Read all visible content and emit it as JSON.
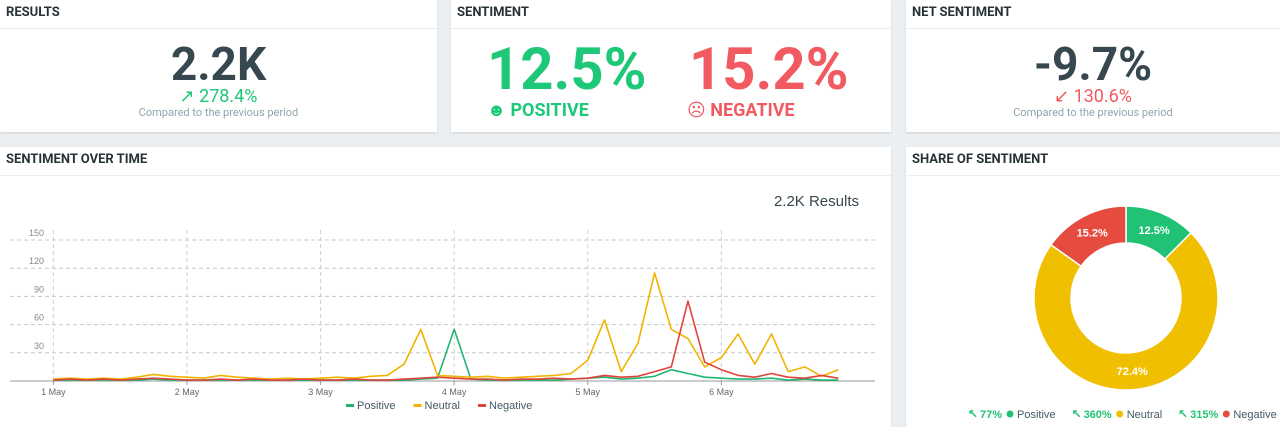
{
  "results": {
    "title": "RESULTS",
    "value": "2.2K",
    "change": "278.4%",
    "note": "Compared to the previous period"
  },
  "sentiment": {
    "title": "SENTIMENT",
    "positive": {
      "value": "12.5%",
      "label": "POSITIVE"
    },
    "negative": {
      "value": "15.2%",
      "label": "NEGATIVE"
    }
  },
  "net_sentiment": {
    "title": "NET SENTIMENT",
    "value": "-9.7%",
    "change": "130.6%",
    "note": "Compared to the previous period"
  },
  "chart_data": [
    {
      "type": "line",
      "title": "SENTIMENT OVER TIME",
      "subtitle": "2.2K Results",
      "x": [
        0,
        0.125,
        0.25,
        0.375,
        0.5,
        0.625,
        0.75,
        0.875,
        1,
        1.125,
        1.25,
        1.375,
        1.5,
        1.625,
        1.75,
        1.875,
        2,
        2.125,
        2.25,
        2.375,
        2.5,
        2.625,
        2.75,
        2.875,
        3,
        3.125,
        3.25,
        3.375,
        3.5,
        3.625,
        3.75,
        3.875,
        4,
        4.125,
        4.25,
        4.375,
        4.5,
        4.625,
        4.75,
        4.875,
        5,
        5.125,
        5.25,
        5.375,
        5.5,
        5.625,
        5.75,
        5.875
      ],
      "xlim": [
        -0.1,
        6.15
      ],
      "xticks": [
        {
          "value": 0,
          "label": "1 May"
        },
        {
          "value": 1,
          "label": "2 May"
        },
        {
          "value": 2,
          "label": "3 May"
        },
        {
          "value": 3,
          "label": "4 May"
        },
        {
          "value": 4,
          "label": "5 May"
        },
        {
          "value": 5,
          "label": "6 May"
        }
      ],
      "ylim": [
        0,
        150
      ],
      "yticks": [
        30,
        60,
        90,
        120,
        150
      ],
      "grid": true,
      "series": [
        {
          "name": "Positive",
          "color": "#21b573",
          "values": [
            1,
            1,
            1,
            1,
            1,
            1,
            2,
            1,
            1,
            1,
            1,
            1,
            1,
            1,
            1,
            1,
            1,
            1,
            1,
            1,
            1,
            1,
            2,
            3,
            55,
            2,
            1,
            1,
            1,
            1,
            1,
            2,
            3,
            4,
            2,
            3,
            5,
            12,
            8,
            4,
            3,
            2,
            2,
            3,
            1,
            2,
            1,
            1
          ]
        },
        {
          "name": "Neutral",
          "color": "#f0b400",
          "values": [
            2,
            3,
            2,
            3,
            2,
            4,
            7,
            5,
            4,
            3,
            6,
            4,
            3,
            2,
            3,
            2,
            3,
            4,
            3,
            5,
            6,
            18,
            55,
            6,
            5,
            4,
            5,
            3,
            4,
            5,
            6,
            8,
            22,
            65,
            10,
            40,
            115,
            55,
            45,
            15,
            25,
            50,
            18,
            50,
            10,
            15,
            5,
            12
          ]
        },
        {
          "name": "Negative",
          "color": "#e0433a",
          "values": [
            1,
            2,
            1,
            2,
            1,
            2,
            3,
            2,
            1,
            1,
            2,
            1,
            2,
            1,
            1,
            2,
            1,
            1,
            2,
            1,
            1,
            2,
            3,
            4,
            3,
            2,
            2,
            1,
            2,
            2,
            3,
            2,
            3,
            6,
            4,
            5,
            10,
            15,
            85,
            20,
            12,
            6,
            4,
            8,
            4,
            3,
            6,
            3
          ]
        }
      ]
    },
    {
      "type": "pie",
      "donut": true,
      "title": "SHARE OF SENTIMENT",
      "categories": [
        "Positive",
        "Neutral",
        "Negative"
      ],
      "values": [
        12.5,
        72.4,
        15.2
      ],
      "value_labels": [
        "12.5%",
        "72.4%",
        "15.2%"
      ],
      "colors": [
        "#21c275",
        "#f0c000",
        "#e54b3f"
      ],
      "trend_labels": [
        "77%",
        "360%",
        "315%"
      ]
    }
  ]
}
